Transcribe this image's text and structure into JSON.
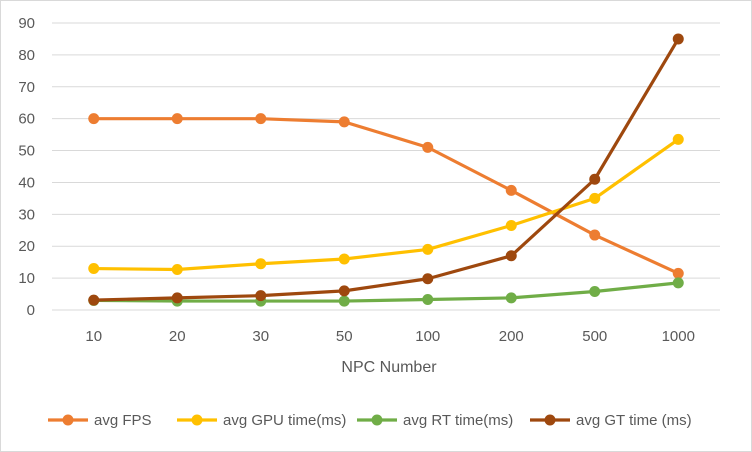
{
  "chart_data": {
    "type": "line",
    "title": "",
    "xlabel": "NPC Number",
    "ylabel": "",
    "categories": [
      "10",
      "20",
      "30",
      "50",
      "100",
      "200",
      "500",
      "1000"
    ],
    "ylim": [
      0,
      90
    ],
    "yticks": [
      0,
      10,
      20,
      30,
      40,
      50,
      60,
      70,
      80,
      90
    ],
    "grid": "horizontal",
    "legend": "bottom",
    "series": [
      {
        "name": "avg FPS",
        "color": "#ED7D31",
        "values": [
          60,
          60,
          60,
          59,
          51,
          37.5,
          23.5,
          11.5
        ]
      },
      {
        "name": "avg GPU time(ms)",
        "color": "#FFC000",
        "values": [
          13,
          12.7,
          14.5,
          16,
          19,
          26.5,
          35,
          53.5
        ]
      },
      {
        "name": "avg RT time(ms)",
        "color": "#70AD47",
        "values": [
          3,
          2.8,
          2.8,
          2.8,
          3.3,
          3.8,
          5.8,
          8.5
        ]
      },
      {
        "name": "avg GT time (ms)",
        "color": "#9E480E",
        "values": [
          3.1,
          3.8,
          4.5,
          6,
          9.8,
          17,
          41,
          85
        ]
      }
    ]
  }
}
